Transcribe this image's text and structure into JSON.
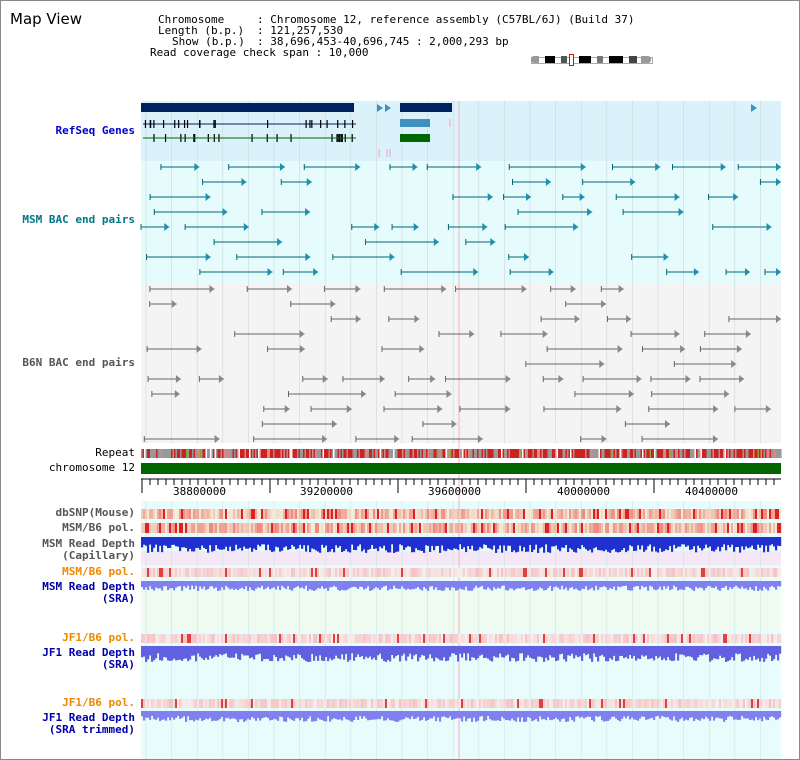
{
  "title": "Map View",
  "info": {
    "chromosome_key": "Chromosome",
    "chromosome_val": ": Chromosome 12, reference assembly (C57BL/6J) (Build 37)",
    "length_key": "Length (b.p.)",
    "length_val": ": 121,257,530",
    "show_key": "Show (b.p.)",
    "show_val": ": 38,696,453-40,696,745 : 2,000,293 bp",
    "coverage_line": "Read coverage check span : 10,000"
  },
  "track_labels": {
    "refseq": "RefSeq Genes",
    "msm_bac": "MSM BAC end pairs",
    "b6n_bac": "B6N BAC end pairs",
    "repeat": "Repeat",
    "chromosome": "chromosome 12",
    "dbsnp": "dbSNP(Mouse)",
    "msm_b6_pol": "MSM/B6 pol.",
    "msm_depth_cap_1": "MSM Read Depth",
    "msm_depth_cap_2": "(Capillary)",
    "msm_b6_pol2": "MSM/B6 pol.",
    "msm_depth_sra_1": "MSM Read Depth",
    "msm_depth_sra_2": "(SRA)",
    "jf1_pol": "JF1/B6 pol.",
    "jf1_depth_sra_1": "JF1 Read Depth",
    "jf1_depth_sra_2": "(SRA)",
    "jf1_pol2": "JF1/B6 pol.",
    "jf1_depth_trim_1": "JF1 Read Depth",
    "jf1_depth_trim_2": "(SRA trimmed)"
  },
  "axis_ticks": [
    "38800000",
    "39200000",
    "39600000",
    "40000000",
    "40400000"
  ],
  "colors": {
    "refseq_label": "#0000cc",
    "msm_label": "#007788",
    "b6n_label": "#555555",
    "orange_label": "#ee8800",
    "blue_label": "#0000aa",
    "navy": "#002060",
    "teal": "#006677",
    "chrom_green": "#006600",
    "refseq_bg": "#dcf2fa",
    "msm_bg": "#e6fbfb",
    "b6n_bg": "#f4f4f4"
  }
}
